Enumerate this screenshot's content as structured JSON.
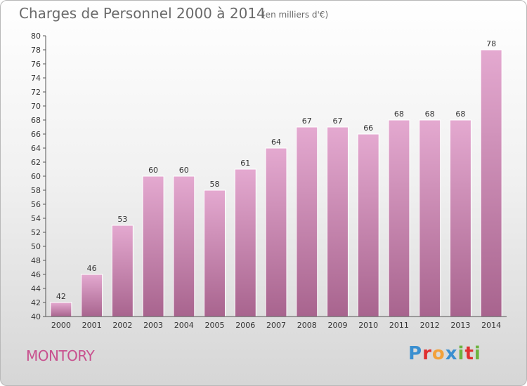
{
  "chart_data": {
    "type": "bar",
    "title": "Charges de Personnel 2000 à 2014",
    "subtitle": "(en milliers d'€)",
    "xlabel": "",
    "ylabel": "",
    "categories": [
      "2000",
      "2001",
      "2002",
      "2003",
      "2004",
      "2005",
      "2006",
      "2007",
      "2008",
      "2009",
      "2010",
      "2011",
      "2012",
      "2013",
      "2014"
    ],
    "values": [
      42,
      46,
      53,
      60,
      60,
      58,
      61,
      64,
      67,
      67,
      66,
      68,
      68,
      68,
      78
    ],
    "ylim": [
      40,
      80
    ],
    "ytick_step": 2,
    "grid": false,
    "legend": "none",
    "bar_color_top": "#e4a9d0",
    "bar_color_bottom": "#a8648e"
  },
  "footer": {
    "commune": "MONTORY",
    "brand_letters": [
      "P",
      "r",
      "o",
      "x",
      "i",
      "t",
      "i"
    ],
    "brand_colors": [
      "#3a8fd0",
      "#e0302f",
      "#f2a13a",
      "#3a8fd0",
      "#6cb33f",
      "#e0302f",
      "#6cb33f"
    ]
  }
}
